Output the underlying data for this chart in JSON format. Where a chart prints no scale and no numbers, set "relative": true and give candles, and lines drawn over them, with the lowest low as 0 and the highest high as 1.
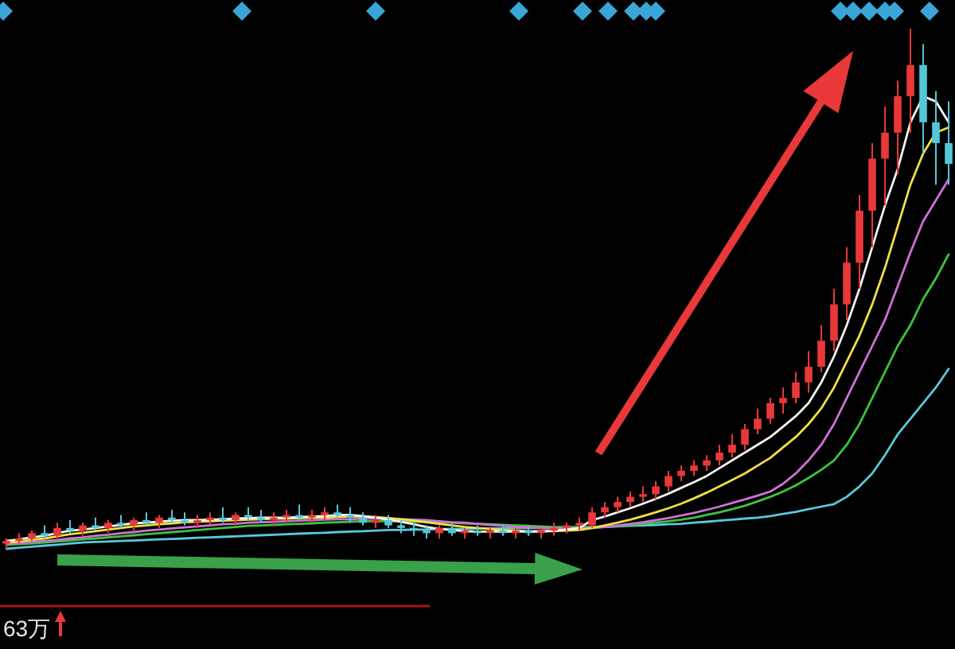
{
  "chart_data": {
    "type": "candlestick",
    "relative": true,
    "categories": [
      null,
      null,
      null,
      null,
      null,
      null,
      null,
      null,
      null,
      null,
      null,
      null,
      null,
      null,
      null,
      null,
      null,
      null,
      null,
      null,
      null,
      null,
      null,
      null,
      null,
      null,
      null,
      null,
      null,
      null,
      null,
      null,
      null,
      null,
      null,
      null,
      null,
      null,
      null,
      null,
      null,
      null,
      null,
      null,
      null,
      null,
      null,
      null,
      null,
      null,
      null,
      null,
      null,
      null,
      null,
      null,
      null,
      null,
      null,
      null,
      null,
      null,
      null,
      null,
      null,
      null,
      null,
      null,
      null,
      null,
      null,
      null,
      null,
      null,
      null
    ],
    "ohlc": [
      [
        0.01,
        0.02,
        0,
        0.015
      ],
      [
        0.015,
        0.03,
        0.01,
        0.02
      ],
      [
        0.02,
        0.035,
        0.015,
        0.03
      ],
      [
        0.03,
        0.045,
        0.02,
        0.025
      ],
      [
        0.025,
        0.05,
        0.02,
        0.04
      ],
      [
        0.04,
        0.055,
        0.03,
        0.035
      ],
      [
        0.035,
        0.05,
        0.025,
        0.045
      ],
      [
        0.045,
        0.06,
        0.035,
        0.04
      ],
      [
        0.04,
        0.055,
        0.03,
        0.05
      ],
      [
        0.05,
        0.065,
        0.04,
        0.045
      ],
      [
        0.045,
        0.06,
        0.035,
        0.055
      ],
      [
        0.055,
        0.07,
        0.045,
        0.05
      ],
      [
        0.05,
        0.065,
        0.04,
        0.06
      ],
      [
        0.06,
        0.075,
        0.05,
        0.055
      ],
      [
        0.055,
        0.07,
        0.045,
        0.05
      ],
      [
        0.05,
        0.065,
        0.04,
        0.055
      ],
      [
        0.055,
        0.07,
        0.045,
        0.06
      ],
      [
        0.06,
        0.08,
        0.05,
        0.055
      ],
      [
        0.055,
        0.07,
        0.045,
        0.065
      ],
      [
        0.065,
        0.08,
        0.055,
        0.06
      ],
      [
        0.06,
        0.075,
        0.05,
        0.055
      ],
      [
        0.055,
        0.07,
        0.045,
        0.06
      ],
      [
        0.06,
        0.075,
        0.05,
        0.065
      ],
      [
        0.065,
        0.085,
        0.055,
        0.06
      ],
      [
        0.06,
        0.075,
        0.05,
        0.065
      ],
      [
        0.065,
        0.08,
        0.055,
        0.07
      ],
      [
        0.07,
        0.085,
        0.06,
        0.065
      ],
      [
        0.065,
        0.08,
        0.05,
        0.06
      ],
      [
        0.06,
        0.07,
        0.045,
        0.05
      ],
      [
        0.05,
        0.065,
        0.04,
        0.055
      ],
      [
        0.055,
        0.065,
        0.04,
        0.045
      ],
      [
        0.045,
        0.055,
        0.03,
        0.04
      ],
      [
        0.04,
        0.05,
        0.025,
        0.035
      ],
      [
        0.035,
        0.045,
        0.02,
        0.03
      ],
      [
        0.03,
        0.045,
        0.02,
        0.04
      ],
      [
        0.04,
        0.05,
        0.025,
        0.03
      ],
      [
        0.03,
        0.04,
        0.02,
        0.035
      ],
      [
        0.035,
        0.045,
        0.025,
        0.03
      ],
      [
        0.03,
        0.04,
        0.02,
        0.035
      ],
      [
        0.035,
        0.045,
        0.025,
        0.03
      ],
      [
        0.03,
        0.04,
        0.02,
        0.035
      ],
      [
        0.035,
        0.045,
        0.025,
        0.03
      ],
      [
        0.03,
        0.04,
        0.02,
        0.035
      ],
      [
        0.035,
        0.05,
        0.025,
        0.04
      ],
      [
        0.04,
        0.05,
        0.03,
        0.045
      ],
      [
        0.045,
        0.06,
        0.035,
        0.05
      ],
      [
        0.045,
        0.08,
        0.04,
        0.07
      ],
      [
        0.07,
        0.09,
        0.06,
        0.08
      ],
      [
        0.08,
        0.1,
        0.07,
        0.09
      ],
      [
        0.09,
        0.11,
        0.08,
        0.1
      ],
      [
        0.1,
        0.12,
        0.09,
        0.105
      ],
      [
        0.105,
        0.13,
        0.095,
        0.12
      ],
      [
        0.12,
        0.15,
        0.11,
        0.14
      ],
      [
        0.14,
        0.16,
        0.13,
        0.15
      ],
      [
        0.15,
        0.17,
        0.14,
        0.16
      ],
      [
        0.16,
        0.18,
        0.15,
        0.17
      ],
      [
        0.17,
        0.2,
        0.16,
        0.185
      ],
      [
        0.185,
        0.22,
        0.175,
        0.2
      ],
      [
        0.2,
        0.24,
        0.19,
        0.23
      ],
      [
        0.23,
        0.27,
        0.22,
        0.25
      ],
      [
        0.25,
        0.29,
        0.24,
        0.28
      ],
      [
        0.28,
        0.31,
        0.26,
        0.29
      ],
      [
        0.29,
        0.34,
        0.28,
        0.32
      ],
      [
        0.32,
        0.38,
        0.3,
        0.35
      ],
      [
        0.35,
        0.43,
        0.34,
        0.4
      ],
      [
        0.4,
        0.5,
        0.38,
        0.47
      ],
      [
        0.47,
        0.58,
        0.44,
        0.55
      ],
      [
        0.55,
        0.68,
        0.5,
        0.65
      ],
      [
        0.65,
        0.78,
        0.58,
        0.75
      ],
      [
        0.75,
        0.85,
        0.66,
        0.8
      ],
      [
        0.8,
        0.9,
        0.72,
        0.87
      ],
      [
        0.87,
        1,
        0.8,
        0.93
      ],
      [
        0.93,
        0.97,
        0.76,
        0.82
      ],
      [
        0.82,
        0.88,
        0.7,
        0.78
      ],
      [
        0.78,
        0.86,
        0.7,
        0.74
      ]
    ],
    "colors": [
      "#e8383a",
      "#e8383a",
      "#e8383a",
      "#54c6d8",
      "#e8383a",
      "#54c6d8",
      "#e8383a",
      "#54c6d8",
      "#e8383a",
      "#54c6d8",
      "#e8383a",
      "#54c6d8",
      "#e8383a",
      "#54c6d8",
      "#54c6d8",
      "#e8383a",
      "#e8383a",
      "#54c6d8",
      "#e8383a",
      "#54c6d8",
      "#54c6d8",
      "#e8383a",
      "#e8383a",
      "#54c6d8",
      "#e8383a",
      "#e8383a",
      "#54c6d8",
      "#54c6d8",
      "#54c6d8",
      "#e8383a",
      "#54c6d8",
      "#54c6d8",
      "#54c6d8",
      "#54c6d8",
      "#e8383a",
      "#54c6d8",
      "#e8383a",
      "#54c6d8",
      "#e8383a",
      "#54c6d8",
      "#e8383a",
      "#54c6d8",
      "#e8383a",
      "#e8383a",
      "#e8383a",
      "#e8383a",
      "#e8383a",
      "#e8383a",
      "#e8383a",
      "#e8383a",
      "#e8383a",
      "#e8383a",
      "#e8383a",
      "#e8383a",
      "#e8383a",
      "#e8383a",
      "#e8383a",
      "#e8383a",
      "#e8383a",
      "#e8383a",
      "#e8383a",
      "#e8383a",
      "#e8383a",
      "#e8383a",
      "#e8383a",
      "#e8383a",
      "#e8383a",
      "#e8383a",
      "#e8383a",
      "#e8383a",
      "#e8383a",
      "#e8383a",
      "#54c6d8",
      "#54c6d8",
      "#54c6d8"
    ],
    "series": [
      {
        "type": "line",
        "color": "#5ac8dc",
        "values": [
          0,
          0.002,
          0.004,
          0.006,
          0.008,
          0.01,
          0.012,
          0.013,
          0.014,
          0.015,
          0.016,
          0.017,
          0.018,
          0.019,
          0.02,
          0.021,
          0.022,
          0.023,
          0.024,
          0.025,
          0.026,
          0.027,
          0.028,
          0.029,
          0.03,
          0.031,
          0.032,
          0.033,
          0.034,
          0.035,
          0.036,
          0.036,
          0.037,
          0.037,
          0.038,
          0.038,
          0.038,
          0.039,
          0.039,
          0.039,
          0.04,
          0.04,
          0.04,
          0.04,
          0.04,
          0.041,
          0.041,
          0.042,
          0.043,
          0.044,
          0.045,
          0.046,
          0.047,
          0.048,
          0.05,
          0.052,
          0.054,
          0.056,
          0.058,
          0.06,
          0.063,
          0.067,
          0.071,
          0.076,
          0.081,
          0.086,
          0.1,
          0.12,
          0.145,
          0.18,
          0.22,
          0.25,
          0.28,
          0.31,
          0.346
        ]
      },
      {
        "type": "line",
        "color": "#3cc43c",
        "values": [
          0.008,
          0.009,
          0.01,
          0.012,
          0.014,
          0.016,
          0.018,
          0.02,
          0.022,
          0.024,
          0.026,
          0.028,
          0.03,
          0.032,
          0.034,
          0.036,
          0.038,
          0.04,
          0.042,
          0.044,
          0.045,
          0.046,
          0.047,
          0.048,
          0.049,
          0.05,
          0.051,
          0.052,
          0.053,
          0.053,
          0.053,
          0.053,
          0.052,
          0.052,
          0.051,
          0.05,
          0.049,
          0.048,
          0.047,
          0.046,
          0.045,
          0.044,
          0.043,
          0.042,
          0.042,
          0.042,
          0.042,
          0.043,
          0.044,
          0.046,
          0.048,
          0.05,
          0.053,
          0.056,
          0.06,
          0.065,
          0.07,
          0.076,
          0.083,
          0.091,
          0.1,
          0.11,
          0.122,
          0.136,
          0.152,
          0.17,
          0.2,
          0.24,
          0.29,
          0.34,
          0.39,
          0.43,
          0.48,
          0.52,
          0.566
        ]
      },
      {
        "type": "line",
        "color": "#d070d8",
        "values": [
          0.01,
          0.011,
          0.013,
          0.015,
          0.017,
          0.02,
          0.022,
          0.025,
          0.027,
          0.03,
          0.032,
          0.035,
          0.037,
          0.039,
          0.041,
          0.043,
          0.045,
          0.047,
          0.048,
          0.05,
          0.051,
          0.052,
          0.053,
          0.054,
          0.055,
          0.056,
          0.057,
          0.057,
          0.058,
          0.058,
          0.058,
          0.057,
          0.056,
          0.055,
          0.053,
          0.051,
          0.05,
          0.048,
          0.046,
          0.044,
          0.042,
          0.041,
          0.04,
          0.039,
          0.039,
          0.039,
          0.04,
          0.042,
          0.045,
          0.048,
          0.051,
          0.055,
          0.059,
          0.064,
          0.069,
          0.075,
          0.081,
          0.088,
          0.095,
          0.102,
          0.11,
          0.125,
          0.145,
          0.17,
          0.2,
          0.24,
          0.29,
          0.34,
          0.39,
          0.44,
          0.505,
          0.57,
          0.63,
          0.67,
          0.71
        ]
      },
      {
        "type": "line",
        "color": "#f0e040",
        "values": [
          0.012,
          0.014,
          0.017,
          0.02,
          0.024,
          0.028,
          0.031,
          0.034,
          0.037,
          0.04,
          0.043,
          0.045,
          0.047,
          0.049,
          0.051,
          0.052,
          0.053,
          0.054,
          0.055,
          0.056,
          0.057,
          0.058,
          0.058,
          0.059,
          0.06,
          0.06,
          0.061,
          0.062,
          0.062,
          0.061,
          0.059,
          0.057,
          0.054,
          0.051,
          0.048,
          0.045,
          0.042,
          0.04,
          0.038,
          0.036,
          0.035,
          0.034,
          0.034,
          0.034,
          0.035,
          0.036,
          0.04,
          0.045,
          0.05,
          0.056,
          0.063,
          0.07,
          0.078,
          0.087,
          0.097,
          0.108,
          0.12,
          0.132,
          0.145,
          0.16,
          0.175,
          0.195,
          0.215,
          0.24,
          0.27,
          0.31,
          0.36,
          0.41,
          0.47,
          0.54,
          0.62,
          0.7,
          0.76,
          0.8,
          0.81
        ]
      },
      {
        "type": "line",
        "color": "#f4f4f4",
        "values": [
          0.015,
          0.018,
          0.022,
          0.025,
          0.03,
          0.035,
          0.037,
          0.04,
          0.043,
          0.046,
          0.049,
          0.05,
          0.052,
          0.054,
          0.055,
          0.055,
          0.056,
          0.057,
          0.058,
          0.059,
          0.06,
          0.06,
          0.06,
          0.061,
          0.062,
          0.063,
          0.065,
          0.065,
          0.063,
          0.06,
          0.056,
          0.052,
          0.047,
          0.042,
          0.038,
          0.036,
          0.034,
          0.033,
          0.033,
          0.033,
          0.033,
          0.033,
          0.033,
          0.035,
          0.037,
          0.04,
          0.055,
          0.062,
          0.07,
          0.078,
          0.087,
          0.096,
          0.106,
          0.117,
          0.128,
          0.14,
          0.155,
          0.17,
          0.185,
          0.2,
          0.215,
          0.235,
          0.255,
          0.28,
          0.32,
          0.37,
          0.43,
          0.5,
          0.58,
          0.66,
          0.73,
          0.82,
          0.87,
          0.86,
          0.82
        ]
      }
    ],
    "annotations": [
      "63万"
    ]
  }
}
